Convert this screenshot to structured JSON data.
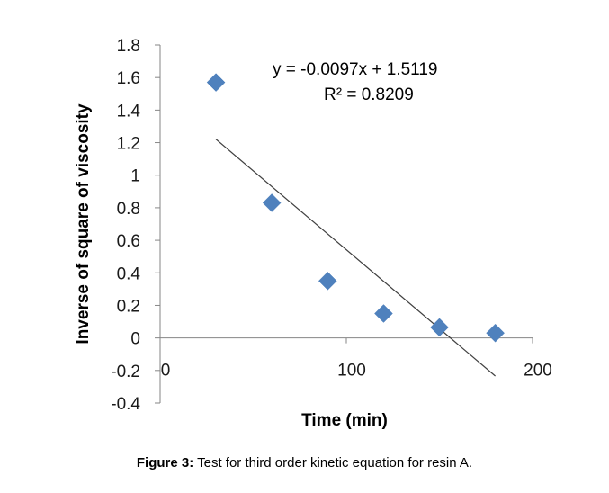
{
  "chart_data": {
    "type": "scatter",
    "xlabel": "Time (min)",
    "ylabel": "Inverse of square of viscosity",
    "xlim": [
      0,
      200
    ],
    "ylim": [
      -0.4,
      1.8
    ],
    "x_ticks": [
      "0",
      "100",
      "200"
    ],
    "x_tick_values": [
      0,
      100,
      200
    ],
    "y_ticks": [
      "1.8",
      "1.6",
      "1.4",
      "1.2",
      "1",
      "0.8",
      "0.6",
      "0.4",
      "0.2",
      "0",
      "-0.2",
      "-0.4"
    ],
    "y_tick_values": [
      1.8,
      1.6,
      1.4,
      1.2,
      1.0,
      0.8,
      0.6,
      0.4,
      0.2,
      0,
      -0.2,
      -0.4
    ],
    "points": [
      {
        "x": 30,
        "y": 1.57
      },
      {
        "x": 60,
        "y": 0.83
      },
      {
        "x": 90,
        "y": 0.35
      },
      {
        "x": 120,
        "y": 0.15
      },
      {
        "x": 150,
        "y": 0.065
      },
      {
        "x": 180,
        "y": 0.03
      }
    ],
    "trendline": {
      "slope": -0.0097,
      "intercept": 1.5119,
      "x_range": [
        30,
        180
      ],
      "equation_label": "y = -0.0097x + 1.5119",
      "r2_label": "R² = 0.8209"
    },
    "marker_color": "#4f81bd",
    "grid": false,
    "legend": "none"
  },
  "caption": {
    "label": "Figure 3:",
    "text": " Test for third order kinetic equation for resin A."
  }
}
